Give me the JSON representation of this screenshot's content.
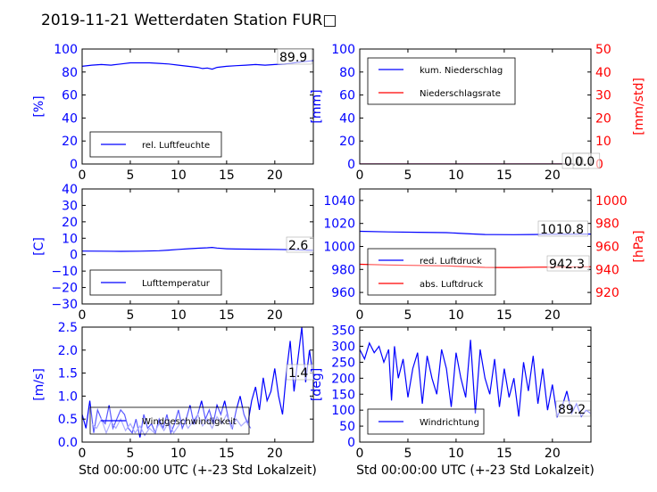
{
  "figure": {
    "title": "2019-11-21 Wetterdaten Station FUR□"
  },
  "colors": {
    "blue": "#0000ff",
    "red": "#ff0000",
    "lightblue": "#8080ff",
    "axis": "#000000"
  },
  "chart_data": [
    {
      "type": "line",
      "xlim": [
        0,
        24
      ],
      "xticks": [
        0,
        5,
        10,
        15,
        20
      ],
      "ylim": [
        0,
        100
      ],
      "yticks": [
        0,
        20,
        40,
        60,
        80,
        100
      ],
      "ylabel": "[%]",
      "xlabel": "",
      "legend": [
        "rel. Luftfeuchte"
      ],
      "legend_placement": "lower-left",
      "last_value_label": "89.9",
      "series": [
        {
          "name": "rel. Luftfeuchte",
          "color": "blue",
          "axis": "left",
          "x": [
            0,
            1,
            2,
            3,
            4,
            5,
            6,
            7,
            8,
            9,
            10,
            11,
            12,
            12.5,
            13,
            13.5,
            14,
            15,
            16,
            17,
            18,
            19,
            20,
            21,
            22,
            23,
            24
          ],
          "y": [
            85,
            86,
            86.5,
            86,
            87,
            88,
            88,
            88,
            87.5,
            87,
            86,
            85,
            84,
            83,
            83.5,
            82.5,
            84,
            85,
            85.5,
            86,
            86.5,
            86,
            86.5,
            87,
            88,
            89,
            89.9
          ]
        }
      ]
    },
    {
      "type": "line",
      "xlim": [
        0,
        24
      ],
      "xticks": [
        0,
        5,
        10,
        15,
        20
      ],
      "ylim": [
        0,
        100
      ],
      "yticks": [
        0,
        20,
        40,
        60,
        80,
        100
      ],
      "ylabel": "[mm]",
      "xlabel": "",
      "ylim2": [
        0,
        50
      ],
      "yticks2": [
        0,
        10,
        20,
        30,
        40,
        50
      ],
      "ylabel2": "[mm/std]",
      "legend": [
        "kum. Niederschlag",
        "Niederschlagsrate"
      ],
      "legend_placement": "upper-left",
      "last_value_label": "0.0",
      "last_value_label2": "0.0",
      "series": [
        {
          "name": "kum. Niederschlag",
          "color": "blue",
          "axis": "left",
          "x": [
            0,
            24
          ],
          "y": [
            0,
            0
          ]
        },
        {
          "name": "Niederschlagsrate",
          "color": "red",
          "axis": "right",
          "x": [
            0,
            24
          ],
          "y": [
            0,
            0
          ]
        }
      ]
    },
    {
      "type": "line",
      "xlim": [
        0,
        24
      ],
      "xticks": [
        0,
        5,
        10,
        15,
        20
      ],
      "ylim": [
        -30,
        40
      ],
      "yticks": [
        -30,
        -20,
        -10,
        0,
        10,
        20,
        30,
        40
      ],
      "ylabel": "[C]",
      "xlabel": "",
      "legend": [
        "Lufttemperatur"
      ],
      "legend_placement": "lower-left",
      "last_value_label": "2.6",
      "series": [
        {
          "name": "Lufttemperatur",
          "color": "blue",
          "axis": "left",
          "x": [
            0,
            2,
            4,
            6,
            8,
            9,
            10,
            11,
            12,
            13,
            13.5,
            14,
            15,
            16,
            18,
            20,
            22,
            24
          ],
          "y": [
            2.2,
            2.1,
            2.0,
            2.1,
            2.4,
            2.8,
            3.2,
            3.6,
            3.9,
            4.2,
            4.4,
            4.0,
            3.6,
            3.4,
            3.3,
            3.2,
            3.0,
            2.6
          ]
        }
      ]
    },
    {
      "type": "line",
      "xlim": [
        0,
        24
      ],
      "xticks": [
        0,
        5,
        10,
        15,
        20
      ],
      "ylim": [
        950,
        1050
      ],
      "yticks": [
        960,
        980,
        1000,
        1020,
        1040
      ],
      "ylabel": "",
      "ylim2": [
        910,
        1010
      ],
      "yticks2": [
        920,
        940,
        960,
        980,
        1000
      ],
      "ylabel2": "[hPa]",
      "xlabel": "",
      "legend": [
        "red. Luftdruck",
        "abs. Luftdruck"
      ],
      "legend_placement": "lower-left",
      "last_value_label": "1010.8",
      "last_value_label2": "942.3",
      "series": [
        {
          "name": "red. Luftdruck",
          "color": "blue",
          "axis": "left",
          "x": [
            0,
            3,
            6,
            9,
            11,
            13,
            14,
            16,
            18,
            20,
            22,
            24
          ],
          "y": [
            1013.2,
            1012.6,
            1012.3,
            1012.0,
            1011.2,
            1010.4,
            1010.3,
            1010.2,
            1010.4,
            1010.6,
            1010.7,
            1010.8
          ]
        },
        {
          "name": "abs. Luftdruck",
          "color": "red",
          "axis": "right",
          "x": [
            0,
            3,
            6,
            9,
            11,
            13,
            14,
            16,
            18,
            20,
            22,
            24
          ],
          "y": [
            944.5,
            943.9,
            943.5,
            943.1,
            942.5,
            941.8,
            941.7,
            941.7,
            941.9,
            942.0,
            942.2,
            942.3
          ]
        }
      ]
    },
    {
      "type": "line",
      "xlim": [
        0,
        24
      ],
      "xticks": [
        0,
        5,
        10,
        15,
        20
      ],
      "ylim": [
        0,
        2.5
      ],
      "yticks": [
        0.0,
        0.5,
        1.0,
        1.5,
        2.0,
        2.5
      ],
      "ylabel": "[m/s]",
      "xlabel": "Std 00:00:00 UTC (+-23 Std Lokalzeit)",
      "legend": [
        "Windgeschwindigkeit"
      ],
      "legend_placement": "lower-left",
      "last_value_label": "1.4",
      "series": [
        {
          "name": "Windgeschwindigkeit",
          "color": "blue",
          "axis": "left",
          "x": [
            0,
            0.4,
            0.8,
            1.2,
            1.6,
            2.0,
            2.4,
            2.8,
            3.2,
            3.6,
            4.0,
            4.4,
            4.8,
            5.2,
            5.6,
            6.0,
            6.4,
            6.8,
            7.2,
            7.6,
            8.0,
            8.4,
            8.8,
            9.2,
            9.6,
            10.0,
            10.4,
            10.8,
            11.2,
            11.6,
            12.0,
            12.4,
            12.8,
            13.2,
            13.6,
            14.0,
            14.4,
            14.8,
            15.2,
            15.6,
            16.0,
            16.4,
            16.8,
            17.2,
            17.6,
            18.0,
            18.4,
            18.8,
            19.2,
            19.6,
            20.0,
            20.4,
            20.8,
            21.2,
            21.6,
            22.0,
            22.4,
            22.8,
            23.2,
            23.6,
            24.0
          ],
          "y": [
            0.6,
            0.3,
            0.9,
            0.2,
            0.7,
            0.5,
            0.4,
            0.8,
            0.3,
            0.5,
            0.7,
            0.6,
            0.3,
            0.2,
            0.5,
            0.1,
            0.6,
            0.3,
            0.4,
            0.2,
            0.5,
            0.3,
            0.6,
            0.2,
            0.4,
            0.7,
            0.3,
            0.5,
            0.8,
            0.4,
            0.6,
            0.9,
            0.5,
            0.7,
            0.4,
            0.8,
            0.6,
            0.9,
            0.5,
            0.3,
            0.7,
            1.0,
            0.6,
            0.4,
            0.9,
            1.2,
            0.7,
            1.4,
            0.9,
            1.1,
            1.6,
            1.0,
            0.6,
            1.5,
            2.2,
            1.1,
            1.8,
            2.5,
            1.3,
            2.0,
            1.4
          ]
        },
        {
          "name": "",
          "color": "lightblue",
          "axis": "left",
          "x": [
            1.0,
            1.5,
            2.0,
            2.5,
            3.0,
            3.5,
            4.0,
            4.5,
            5.0,
            5.5,
            6.0,
            6.5,
            7.0,
            7.5,
            8.0,
            8.5,
            9.0,
            9.5,
            10.0,
            10.5,
            11.0,
            11.5,
            12.0,
            12.5,
            13.0,
            13.5,
            14.0,
            14.5,
            15.0,
            15.5,
            16.0,
            16.5,
            17.0,
            17.5
          ],
          "y": [
            0.4,
            0.3,
            0.5,
            0.2,
            0.45,
            0.3,
            0.5,
            0.25,
            0.4,
            0.2,
            0.35,
            0.15,
            0.3,
            0.2,
            0.4,
            0.25,
            0.45,
            0.2,
            0.35,
            0.5,
            0.3,
            0.45,
            0.6,
            0.35,
            0.5,
            0.3,
            0.55,
            0.4,
            0.6,
            0.3,
            0.5,
            0.35,
            0.45,
            0.3
          ]
        }
      ]
    },
    {
      "type": "line",
      "xlim": [
        0,
        24
      ],
      "xticks": [
        0,
        5,
        10,
        15,
        20
      ],
      "ylim": [
        0,
        360
      ],
      "yticks": [
        0,
        50,
        100,
        150,
        200,
        250,
        300,
        350
      ],
      "ylabel": "[deg]",
      "xlabel": "Std 00:00:00 UTC (+-23 Std Lokalzeit)",
      "legend": [
        "Windrichtung"
      ],
      "legend_placement": "lower-left",
      "last_value_label": "89.2",
      "series": [
        {
          "name": "Windrichtung",
          "color": "blue",
          "axis": "left",
          "x": [
            0,
            0.5,
            1.0,
            1.5,
            2.0,
            2.5,
            3.0,
            3.3,
            3.6,
            4.0,
            4.5,
            5.0,
            5.5,
            6.0,
            6.5,
            7.0,
            7.5,
            8.0,
            8.5,
            9.0,
            9.5,
            10.0,
            10.5,
            11.0,
            11.5,
            12.0,
            12.5,
            13.0,
            13.5,
            14.0,
            14.5,
            15.0,
            15.5,
            16.0,
            16.5,
            17.0,
            17.5,
            18.0,
            18.5,
            19.0,
            19.5,
            20.0,
            20.5,
            21.0,
            21.5,
            22.0,
            22.5,
            23.0,
            23.5,
            24.0
          ],
          "y": [
            290,
            260,
            310,
            280,
            300,
            250,
            290,
            130,
            300,
            200,
            260,
            140,
            230,
            280,
            120,
            270,
            200,
            150,
            290,
            230,
            110,
            280,
            200,
            140,
            320,
            90,
            290,
            200,
            150,
            260,
            110,
            230,
            140,
            200,
            80,
            250,
            160,
            270,
            120,
            230,
            100,
            180,
            80,
            110,
            160,
            90,
            120,
            80,
            100,
            89
          ]
        }
      ]
    }
  ]
}
